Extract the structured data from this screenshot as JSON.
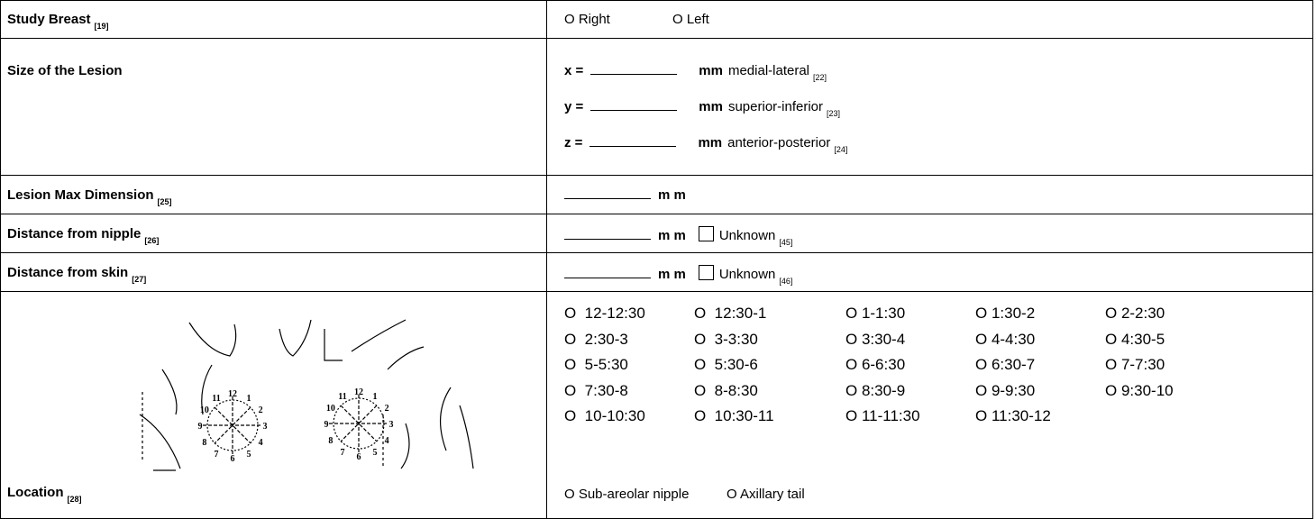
{
  "rows": [
    {
      "label": "Study Breast",
      "ref": "[19]",
      "options": [
        "O Right",
        "O Left"
      ]
    },
    {
      "label": "Size of the Lesion",
      "fields": [
        {
          "axis": "x =",
          "unit": "mm",
          "desc": "medial-lateral",
          "ref": "[22]"
        },
        {
          "axis": "y =",
          "unit": "mm",
          "desc": "superior-inferior",
          "ref": "[23]"
        },
        {
          "axis": "z =",
          "unit": "mm",
          "desc": "anterior-posterior",
          "ref": "[24]"
        }
      ]
    },
    {
      "label": "Lesion Max Dimension",
      "ref": "[25]",
      "unit": "m m"
    },
    {
      "label": "Distance from nipple",
      "ref": "[26]",
      "unit": "m m",
      "checkbox": "Unknown",
      "checkbox_ref": "[45]"
    },
    {
      "label": "Distance from skin",
      "ref": "[27]",
      "unit": "m m",
      "checkbox": "Unknown",
      "checkbox_ref": "[46]"
    },
    {
      "label": "Location",
      "ref": "[28]",
      "diagram_labels": [
        "12",
        "1",
        "2",
        "3",
        "4",
        "5",
        "6",
        "7",
        "8",
        "9",
        "10",
        "11"
      ],
      "clock_options": [
        "O  12-12:30",
        "O  12:30-1",
        "O 1-1:30",
        "O 1:30-2",
        "O 2-2:30",
        "O  2:30-3",
        "O  3-3:30",
        "O 3:30-4",
        "O 4-4:30",
        "O 4:30-5",
        "O  5-5:30",
        "O  5:30-6",
        "O 6-6:30",
        "O 6:30-7",
        "O 7-7:30",
        "O  7:30-8",
        "O  8-8:30",
        "O 8:30-9",
        "O 9-9:30",
        "O 9:30-10",
        "O  10-10:30",
        "O  10:30-11",
        "O 11-11:30",
        "O 11:30-12"
      ],
      "other_options": [
        "O Sub-areolar  nipple",
        "O Axillary tail"
      ]
    }
  ]
}
